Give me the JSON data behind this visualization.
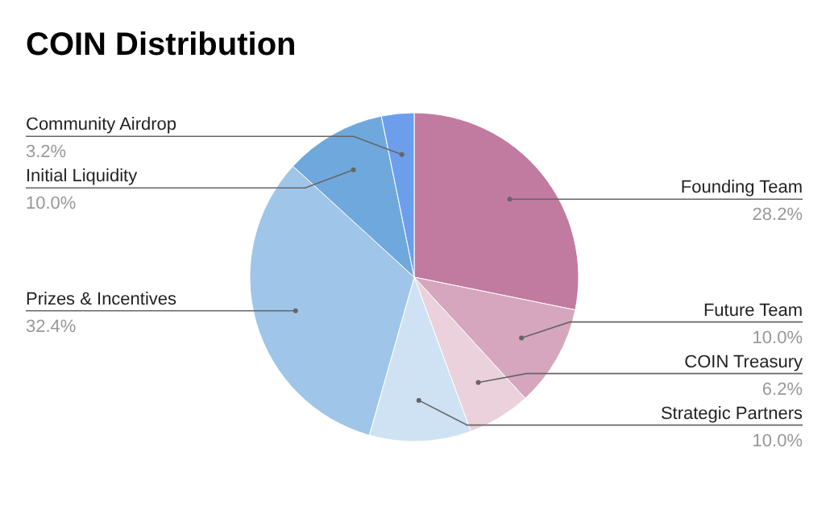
{
  "chart_data": {
    "type": "pie",
    "title": "COIN Distribution",
    "categories": [
      "Founding Team",
      "Future Team",
      "COIN Treasury",
      "Strategic Partners",
      "Prizes & Incentives",
      "Initial Liquidity",
      "Community Airdrop"
    ],
    "values": [
      28.2,
      10.0,
      6.2,
      10.0,
      32.4,
      10.0,
      3.2
    ],
    "value_labels": [
      "28.2%",
      "10.0%",
      "6.2%",
      "10.0%",
      "32.4%",
      "10.0%",
      "3.2%"
    ],
    "colors": [
      "#c27ba0",
      "#d5a6bd",
      "#ead1dc",
      "#cfe2f3",
      "#9fc5e8",
      "#6fa8dc",
      "#6d9eeb"
    ]
  }
}
